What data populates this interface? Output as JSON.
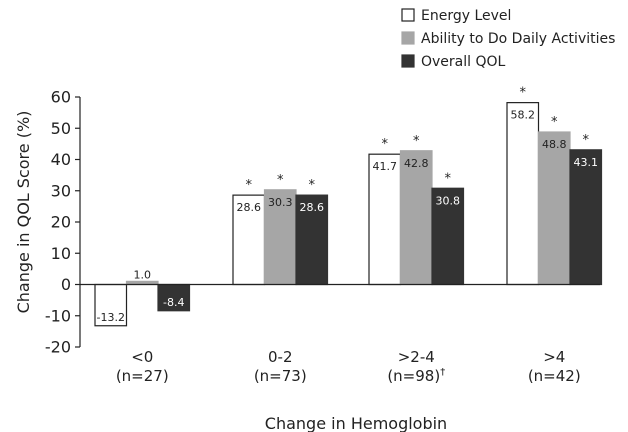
{
  "chart_data": {
    "type": "bar",
    "categories": [
      "<0",
      "0-2",
      ">2-4",
      ">4"
    ],
    "category_sublabels": [
      "(n=27)",
      "(n=73)",
      "(n=98)",
      "(n=42)"
    ],
    "category_sublabel_marks": [
      "",
      "",
      "†",
      ""
    ],
    "series": [
      {
        "name": "Energy Level",
        "values": [
          -13.2,
          28.6,
          41.7,
          58.2
        ],
        "color": "#ffffff",
        "stroke": "#222222",
        "label_color": "#222222",
        "significant": [
          false,
          true,
          true,
          true
        ]
      },
      {
        "name": "Ability to Do Daily Activities",
        "values": [
          1.0,
          30.3,
          42.8,
          48.8
        ],
        "color": "#a6a6a6",
        "stroke": "#a6a6a6",
        "label_color": "#222222",
        "significant": [
          false,
          true,
          true,
          true
        ]
      },
      {
        "name": "Overall QOL",
        "values": [
          -8.4,
          28.6,
          30.8,
          43.1
        ],
        "color": "#333333",
        "stroke": "#333333",
        "label_color": "#ffffff",
        "significant": [
          false,
          true,
          true,
          true
        ]
      }
    ],
    "significance_marker": "*",
    "xlabel": "Change in Hemoglobin",
    "ylabel": "Change in QOL Score (%)",
    "ylim": [
      -20,
      60
    ],
    "yticks": [
      "-20",
      "-10",
      "0",
      "10",
      "20",
      "30",
      "40",
      "50",
      "60"
    ],
    "legend_position": "top-right",
    "grid": false
  }
}
